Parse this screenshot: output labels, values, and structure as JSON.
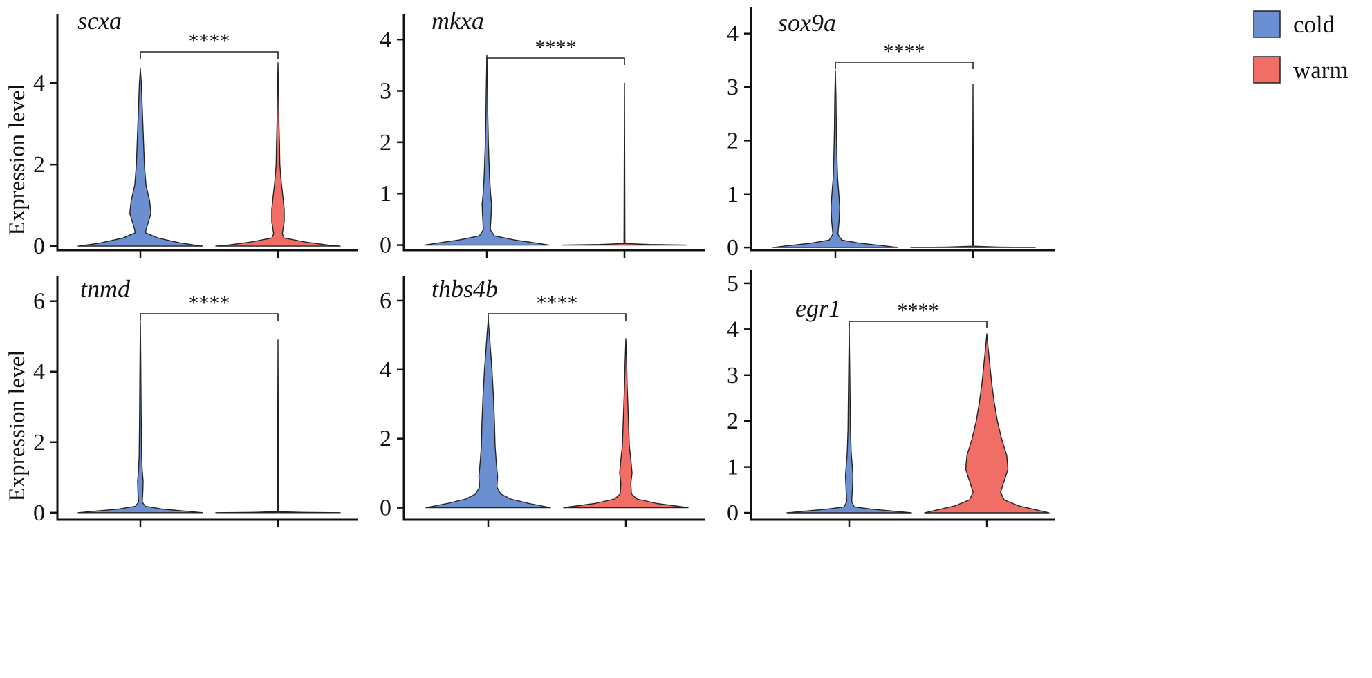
{
  "legend": {
    "entries": [
      {
        "label": "cold",
        "color": "#6b8fd0"
      },
      {
        "label": "warm",
        "color": "#f06e66"
      }
    ],
    "placement": "top-right"
  },
  "chart_data": [
    {
      "type": "violin",
      "title": "scxa",
      "ylabel": "Expression level",
      "ylim": [
        -0.1,
        5.7
      ],
      "yticks": [
        0,
        2,
        4
      ],
      "significance": "****",
      "series": [
        {
          "name": "cold",
          "color": "#6b8fd0",
          "max": 4.35,
          "profile": [
            [
              0,
              0.5
            ],
            [
              0.02,
              0.45
            ],
            [
              0.08,
              0.32
            ],
            [
              0.2,
              0.14
            ],
            [
              0.33,
              0.04
            ],
            [
              0.5,
              0.055
            ],
            [
              0.8,
              0.085
            ],
            [
              1.1,
              0.075
            ],
            [
              1.5,
              0.045
            ],
            [
              2,
              0.032
            ],
            [
              2.5,
              0.026
            ],
            [
              3,
              0.02
            ],
            [
              3.5,
              0.014
            ],
            [
              4,
              0.008
            ],
            [
              4.35,
              0
            ]
          ]
        },
        {
          "name": "warm",
          "color": "#f06e66",
          "max": 4.5,
          "profile": [
            [
              0,
              0.5
            ],
            [
              0.02,
              0.42
            ],
            [
              0.1,
              0.22
            ],
            [
              0.2,
              0.05
            ],
            [
              0.3,
              0.035
            ],
            [
              0.6,
              0.05
            ],
            [
              0.9,
              0.05
            ],
            [
              1.2,
              0.04
            ],
            [
              1.6,
              0.025
            ],
            [
              2,
              0.015
            ],
            [
              2.5,
              0.012
            ],
            [
              3,
              0.008
            ],
            [
              3.6,
              0.005
            ],
            [
              4.5,
              0
            ]
          ]
        }
      ]
    },
    {
      "type": "violin",
      "title": "mkxa",
      "ylabel": "",
      "ylim": [
        -0.1,
        4.5
      ],
      "yticks": [
        0,
        1,
        2,
        3,
        4
      ],
      "significance": "****",
      "series": [
        {
          "name": "cold",
          "color": "#6b8fd0",
          "max": 3.7,
          "profile": [
            [
              0,
              0.5
            ],
            [
              0.03,
              0.42
            ],
            [
              0.1,
              0.22
            ],
            [
              0.18,
              0.06
            ],
            [
              0.3,
              0.028
            ],
            [
              0.6,
              0.035
            ],
            [
              0.8,
              0.038
            ],
            [
              1.0,
              0.03
            ],
            [
              1.3,
              0.022
            ],
            [
              1.6,
              0.018
            ],
            [
              2,
              0.012
            ],
            [
              2.5,
              0.008
            ],
            [
              3,
              0.005
            ],
            [
              3.7,
              0
            ]
          ]
        },
        {
          "name": "warm",
          "color": "#f06e66",
          "max": 3.15,
          "profile": [
            [
              0,
              0.5
            ],
            [
              0.012,
              0.2
            ],
            [
              0.03,
              0.004
            ],
            [
              1.5,
              0.002
            ],
            [
              3.15,
              0
            ]
          ]
        }
      ]
    },
    {
      "type": "violin",
      "title": "sox9a",
      "ylabel": "",
      "ylim": [
        -0.05,
        4.5
      ],
      "yticks": [
        0,
        1,
        2,
        3,
        4
      ],
      "significance": "****",
      "series": [
        {
          "name": "cold",
          "color": "#6b8fd0",
          "max": 3.3,
          "profile": [
            [
              0,
              0.5
            ],
            [
              0.03,
              0.4
            ],
            [
              0.08,
              0.2
            ],
            [
              0.14,
              0.05
            ],
            [
              0.25,
              0.02
            ],
            [
              0.5,
              0.03
            ],
            [
              0.75,
              0.035
            ],
            [
              1.0,
              0.028
            ],
            [
              1.3,
              0.018
            ],
            [
              1.7,
              0.012
            ],
            [
              2.2,
              0.008
            ],
            [
              2.8,
              0.005
            ],
            [
              3.3,
              0
            ]
          ]
        },
        {
          "name": "warm",
          "color": "#f06e66",
          "max": 3.05,
          "profile": [
            [
              0,
              0.5
            ],
            [
              0.01,
              0.2
            ],
            [
              0.025,
              0.004
            ],
            [
              1.5,
              0.002
            ],
            [
              3.05,
              0
            ]
          ]
        }
      ]
    },
    {
      "type": "violin",
      "title": "tnmd",
      "ylabel": "Expression level",
      "ylim": [
        -0.2,
        6.7
      ],
      "yticks": [
        0,
        2,
        4,
        6
      ],
      "significance": "****",
      "series": [
        {
          "name": "cold",
          "color": "#6b8fd0",
          "max": 5.4,
          "profile": [
            [
              0,
              0.5
            ],
            [
              0.04,
              0.38
            ],
            [
              0.1,
              0.18
            ],
            [
              0.18,
              0.04
            ],
            [
              0.3,
              0.015
            ],
            [
              0.6,
              0.02
            ],
            [
              0.9,
              0.022
            ],
            [
              1.2,
              0.015
            ],
            [
              1.6,
              0.01
            ],
            [
              2.5,
              0.007
            ],
            [
              3.5,
              0.005
            ],
            [
              4.5,
              0.003
            ],
            [
              5.4,
              0
            ]
          ]
        },
        {
          "name": "warm",
          "color": "#f06e66",
          "max": 4.9,
          "profile": [
            [
              0,
              0.5
            ],
            [
              0.01,
              0.2
            ],
            [
              0.03,
              0.004
            ],
            [
              2.5,
              0.002
            ],
            [
              4.9,
              0
            ]
          ]
        }
      ]
    },
    {
      "type": "violin",
      "title": "thbs4b",
      "ylabel": "",
      "ylim": [
        -0.35,
        6.7
      ],
      "yticks": [
        0,
        2,
        4,
        6
      ],
      "significance": "****",
      "series": [
        {
          "name": "cold",
          "color": "#6b8fd0",
          "max": 5.45,
          "profile": [
            [
              0,
              0.5
            ],
            [
              0.03,
              0.46
            ],
            [
              0.12,
              0.33
            ],
            [
              0.25,
              0.18
            ],
            [
              0.4,
              0.1
            ],
            [
              0.6,
              0.07
            ],
            [
              0.9,
              0.075
            ],
            [
              1.3,
              0.065
            ],
            [
              1.8,
              0.055
            ],
            [
              2.5,
              0.05
            ],
            [
              3.2,
              0.042
            ],
            [
              4,
              0.03
            ],
            [
              4.6,
              0.018
            ],
            [
              5.1,
              0.008
            ],
            [
              5.45,
              0
            ]
          ]
        },
        {
          "name": "warm",
          "color": "#f06e66",
          "max": 4.9,
          "profile": [
            [
              0,
              0.5
            ],
            [
              0.03,
              0.44
            ],
            [
              0.12,
              0.25
            ],
            [
              0.25,
              0.09
            ],
            [
              0.4,
              0.045
            ],
            [
              0.7,
              0.04
            ],
            [
              1.0,
              0.05
            ],
            [
              1.4,
              0.04
            ],
            [
              1.8,
              0.028
            ],
            [
              2.4,
              0.022
            ],
            [
              3,
              0.016
            ],
            [
              3.6,
              0.01
            ],
            [
              4.2,
              0.006
            ],
            [
              4.9,
              0
            ]
          ]
        }
      ]
    },
    {
      "type": "violin",
      "title": "egr1",
      "ylabel": "",
      "ylim": [
        -0.15,
        5.3
      ],
      "yticks": [
        0,
        1,
        2,
        3,
        4,
        5
      ],
      "significance": "****",
      "series": [
        {
          "name": "cold",
          "color": "#6b8fd0",
          "max": 4.05,
          "profile": [
            [
              0,
              0.5
            ],
            [
              0.03,
              0.38
            ],
            [
              0.08,
              0.18
            ],
            [
              0.13,
              0.04
            ],
            [
              0.25,
              0.02
            ],
            [
              0.5,
              0.025
            ],
            [
              0.8,
              0.03
            ],
            [
              1.0,
              0.025
            ],
            [
              1.3,
              0.016
            ],
            [
              1.8,
              0.01
            ],
            [
              2.5,
              0.007
            ],
            [
              3.2,
              0.004
            ],
            [
              4.05,
              0
            ]
          ]
        },
        {
          "name": "warm",
          "color": "#f06e66",
          "max": 3.9,
          "profile": [
            [
              0,
              0.5
            ],
            [
              0.05,
              0.42
            ],
            [
              0.15,
              0.26
            ],
            [
              0.28,
              0.14
            ],
            [
              0.45,
              0.11
            ],
            [
              0.7,
              0.14
            ],
            [
              0.95,
              0.17
            ],
            [
              1.25,
              0.16
            ],
            [
              1.6,
              0.12
            ],
            [
              2,
              0.085
            ],
            [
              2.4,
              0.06
            ],
            [
              2.8,
              0.04
            ],
            [
              3.2,
              0.025
            ],
            [
              3.6,
              0.01
            ],
            [
              3.9,
              0
            ]
          ]
        }
      ]
    }
  ]
}
